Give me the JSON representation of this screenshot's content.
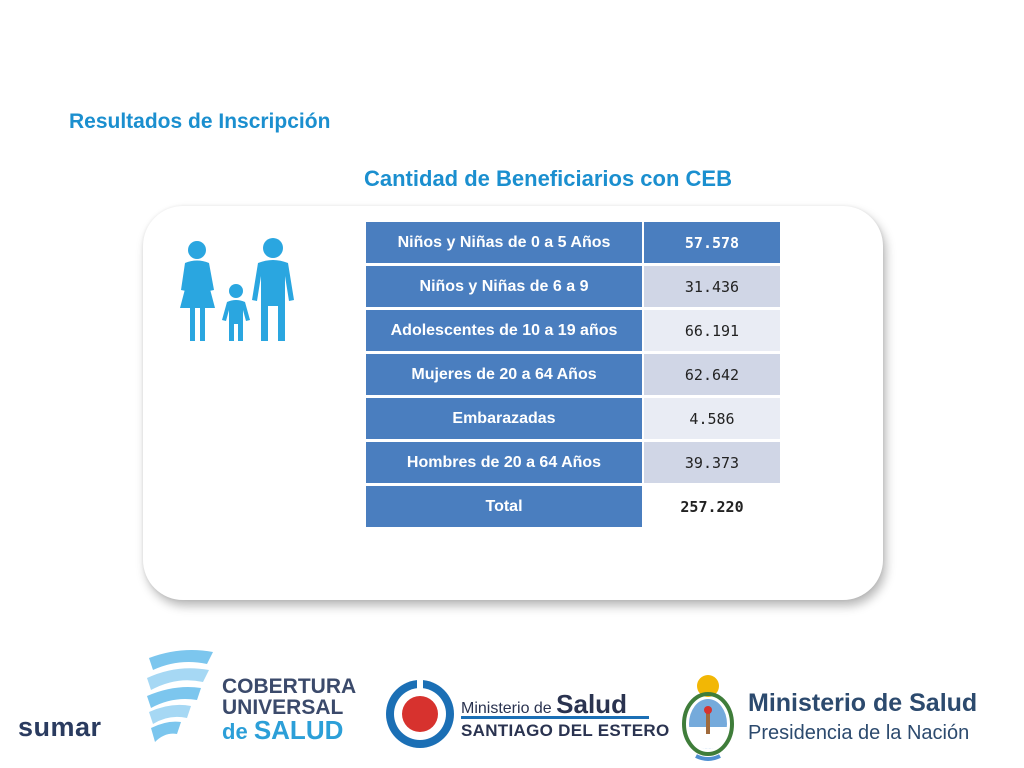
{
  "slide": {
    "title": "Resultados de Inscripción",
    "subtitle": "Cantidad de Beneficiarios con CEB"
  },
  "table": {
    "rows": [
      {
        "label": "Niños y Niñas de 0 a 5 Años",
        "value": "57.578"
      },
      {
        "label": "Niños y Niñas de 6 a 9",
        "value": "31.436"
      },
      {
        "label": "Adolescentes de 10 a 19 años",
        "value": "66.191"
      },
      {
        "label": "Mujeres de 20 a 64 Años",
        "value": "62.642"
      },
      {
        "label": "Embarazadas",
        "value": "4.586"
      },
      {
        "label": "Hombres de 20 a 64 Años",
        "value": "39.373"
      },
      {
        "label": "Total",
        "value": "257.220"
      }
    ]
  },
  "icons": {
    "family": "family-icon"
  },
  "colors": {
    "heading": "#1b8fcf",
    "table_label_bg": "#4a7ebf",
    "table_value_alt_a": "#d0d6e6",
    "table_value_alt_b": "#e9ecf4"
  },
  "footer": {
    "sumar": "sumar",
    "cobertura": {
      "line1": "COBERTURA",
      "line2": "UNIVERSAL",
      "line3_prefix": "de",
      "line3_main": "SALUD"
    },
    "ministerio_sde": {
      "prefix": "Ministerio de",
      "main": "Salud",
      "line2": "SANTIAGO DEL ESTERO"
    },
    "ministerio_nacion": {
      "line1": "Ministerio de Salud",
      "line2": "Presidencia de la Nación"
    }
  }
}
